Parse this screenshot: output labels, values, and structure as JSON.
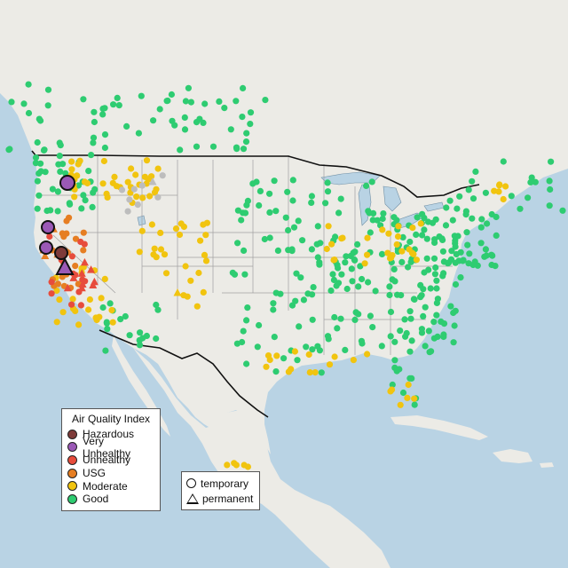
{
  "colors": {
    "water": "#b9d3e4",
    "land": "#ecebe6",
    "border": "#111111",
    "state_line": "#a0a0a0",
    "hazardous": "#7e3b39",
    "very_unhealthy": "#9b59b6",
    "unhealthy": "#e74c3c",
    "usg": "#e67e22",
    "moderate": "#f1c40f",
    "good": "#2ecc71",
    "unknown": "#bdbdbd"
  },
  "legend_aqi": {
    "title": "Air Quality Index",
    "items": [
      {
        "label": "Hazardous",
        "color": "#7e3b39"
      },
      {
        "label": "Very Unhealthy",
        "color": "#9b59b6"
      },
      {
        "label": "Unhealthy",
        "color": "#e74c3c"
      },
      {
        "label": "USG",
        "color": "#e67e22"
      },
      {
        "label": "Moderate",
        "color": "#f1c40f"
      },
      {
        "label": "Good",
        "color": "#2ecc71"
      }
    ]
  },
  "legend_type": {
    "temporary": "temporary",
    "permanent": "permanent"
  }
}
